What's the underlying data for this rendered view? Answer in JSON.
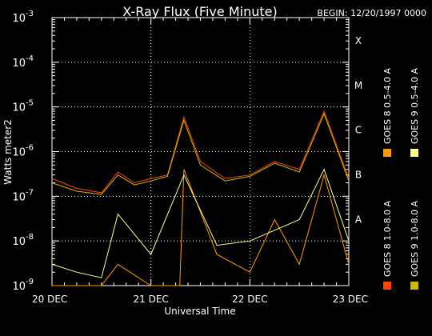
{
  "chart_data": {
    "type": "line",
    "title": "X-Ray Flux (Five Minute)",
    "begin_label": "BEGIN: 12/20/1997 0000",
    "xlabel": "Universal Time",
    "ylabel": "Watts meter2",
    "y_scale": "log",
    "ylim": [
      1e-09,
      0.001
    ],
    "xlim": [
      "1997-12-20 00:00",
      "1997-12-23 00:00"
    ],
    "x_ticks": [
      "20 DEC",
      "21 DEC",
      "22 DEC",
      "23 DEC"
    ],
    "y_ticks": [
      {
        "base": "10",
        "exp": "-9"
      },
      {
        "base": "10",
        "exp": "-8"
      },
      {
        "base": "10",
        "exp": "-7"
      },
      {
        "base": "10",
        "exp": "-6"
      },
      {
        "base": "10",
        "exp": "-5"
      },
      {
        "base": "10",
        "exp": "-4"
      },
      {
        "base": "10",
        "exp": "-3"
      }
    ],
    "flare_classes": [
      {
        "label": "X",
        "threshold": 0.0001
      },
      {
        "label": "M",
        "threshold": 1e-05
      },
      {
        "label": "C",
        "threshold": 1e-06
      },
      {
        "label": "B",
        "threshold": 1e-07
      },
      {
        "label": "A",
        "threshold": 1e-08
      }
    ],
    "grid": true,
    "legend_position": "right-vertical",
    "series": [
      {
        "name": "GOES 8 1.0-8.0 A",
        "color": "#ff4400",
        "x": [
          "1997-12-20 00:00",
          "1997-12-20 06:00",
          "1997-12-20 12:00",
          "1997-12-20 16:00",
          "1997-12-20 20:00",
          "1997-12-21 00:00",
          "1997-12-21 04:00",
          "1997-12-21 08:00",
          "1997-12-21 12:00",
          "1997-12-21 18:00",
          "1997-12-22 00:00",
          "1997-12-22 06:00",
          "1997-12-22 12:00",
          "1997-12-22 18:00",
          "1997-12-23 00:00"
        ],
        "y": [
          2.5e-07,
          1.5e-07,
          1.2e-07,
          3.5e-07,
          2e-07,
          2.5e-07,
          3e-07,
          6e-06,
          6e-07,
          2.5e-07,
          3e-07,
          6e-07,
          4e-07,
          8e-06,
          2.5e-07
        ]
      },
      {
        "name": "GOES 8 0.5-4.0 A",
        "color": "#ff9900",
        "x": [
          "1997-12-20 00:00",
          "1997-12-20 12:00",
          "1997-12-20 16:00",
          "1997-12-21 00:00",
          "1997-12-21 07:00",
          "1997-12-21 08:00",
          "1997-12-21 16:00",
          "1997-12-22 00:00",
          "1997-12-22 06:00",
          "1997-12-22 12:00",
          "1997-12-22 18:00",
          "1997-12-23 00:00"
        ],
        "y": [
          1e-09,
          1e-09,
          3e-09,
          1e-09,
          1e-09,
          4e-07,
          5e-09,
          2e-09,
          3e-08,
          3e-09,
          3e-07,
          3e-09
        ]
      },
      {
        "name": "GOES 9 1.0-8.0 A",
        "color": "#ccbb00",
        "x": [
          "1997-12-20 00:00",
          "1997-12-20 06:00",
          "1997-12-20 12:00",
          "1997-12-20 16:00",
          "1997-12-20 20:00",
          "1997-12-21 00:00",
          "1997-12-21 04:00",
          "1997-12-21 08:00",
          "1997-12-21 12:00",
          "1997-12-21 18:00",
          "1997-12-22 00:00",
          "1997-12-22 06:00",
          "1997-12-22 12:00",
          "1997-12-22 18:00",
          "1997-12-23 00:00"
        ],
        "y": [
          2e-07,
          1.3e-07,
          1.1e-07,
          3e-07,
          1.8e-07,
          2.2e-07,
          2.8e-07,
          5e-06,
          5e-07,
          2.2e-07,
          2.8e-07,
          5.5e-07,
          3.5e-07,
          7e-06,
          2.2e-07
        ]
      },
      {
        "name": "GOES 9 0.5-4.0 A",
        "color": "#ffff88",
        "x": [
          "1997-12-20 00:00",
          "1997-12-20 06:00",
          "1997-12-20 12:00",
          "1997-12-20 16:00",
          "1997-12-21 00:00",
          "1997-12-21 08:00",
          "1997-12-21 16:00",
          "1997-12-22 00:00",
          "1997-12-22 12:00",
          "1997-12-22 18:00",
          "1997-12-23 00:00"
        ],
        "y": [
          3e-09,
          2e-09,
          1.5e-09,
          4e-08,
          5e-09,
          3e-07,
          8e-09,
          1e-08,
          3e-08,
          4e-07,
          1e-08
        ]
      }
    ]
  }
}
